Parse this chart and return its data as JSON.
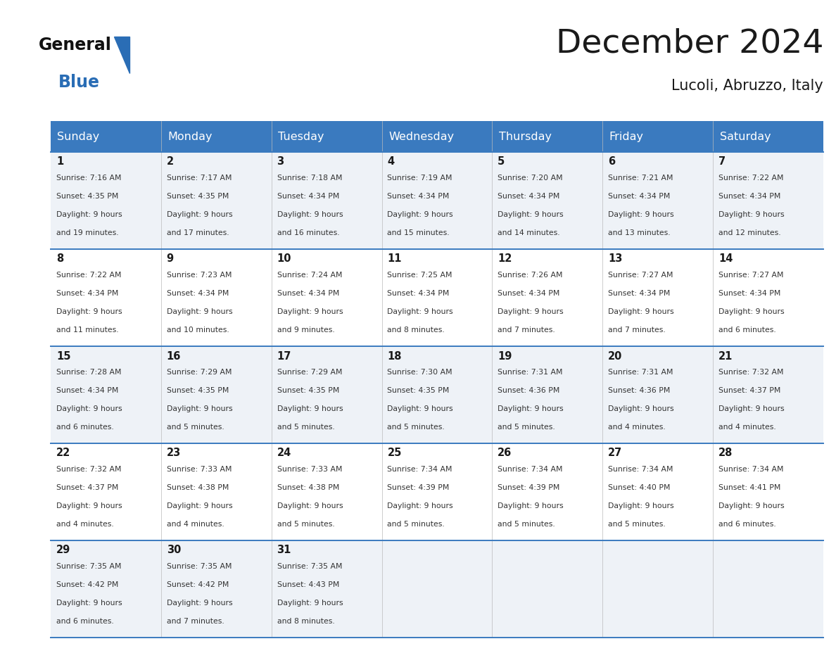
{
  "title": "December 2024",
  "subtitle": "Lucoli, Abruzzo, Italy",
  "header_color": "#3a7abf",
  "header_text_color": "#ffffff",
  "day_headers": [
    "Sunday",
    "Monday",
    "Tuesday",
    "Wednesday",
    "Thursday",
    "Friday",
    "Saturday"
  ],
  "weeks": [
    [
      {
        "day": 1,
        "sunrise": "7:16 AM",
        "sunset": "4:35 PM",
        "daylight_line1": "Daylight: 9 hours",
        "daylight_line2": "and 19 minutes."
      },
      {
        "day": 2,
        "sunrise": "7:17 AM",
        "sunset": "4:35 PM",
        "daylight_line1": "Daylight: 9 hours",
        "daylight_line2": "and 17 minutes."
      },
      {
        "day": 3,
        "sunrise": "7:18 AM",
        "sunset": "4:34 PM",
        "daylight_line1": "Daylight: 9 hours",
        "daylight_line2": "and 16 minutes."
      },
      {
        "day": 4,
        "sunrise": "7:19 AM",
        "sunset": "4:34 PM",
        "daylight_line1": "Daylight: 9 hours",
        "daylight_line2": "and 15 minutes."
      },
      {
        "day": 5,
        "sunrise": "7:20 AM",
        "sunset": "4:34 PM",
        "daylight_line1": "Daylight: 9 hours",
        "daylight_line2": "and 14 minutes."
      },
      {
        "day": 6,
        "sunrise": "7:21 AM",
        "sunset": "4:34 PM",
        "daylight_line1": "Daylight: 9 hours",
        "daylight_line2": "and 13 minutes."
      },
      {
        "day": 7,
        "sunrise": "7:22 AM",
        "sunset": "4:34 PM",
        "daylight_line1": "Daylight: 9 hours",
        "daylight_line2": "and 12 minutes."
      }
    ],
    [
      {
        "day": 8,
        "sunrise": "7:22 AM",
        "sunset": "4:34 PM",
        "daylight_line1": "Daylight: 9 hours",
        "daylight_line2": "and 11 minutes."
      },
      {
        "day": 9,
        "sunrise": "7:23 AM",
        "sunset": "4:34 PM",
        "daylight_line1": "Daylight: 9 hours",
        "daylight_line2": "and 10 minutes."
      },
      {
        "day": 10,
        "sunrise": "7:24 AM",
        "sunset": "4:34 PM",
        "daylight_line1": "Daylight: 9 hours",
        "daylight_line2": "and 9 minutes."
      },
      {
        "day": 11,
        "sunrise": "7:25 AM",
        "sunset": "4:34 PM",
        "daylight_line1": "Daylight: 9 hours",
        "daylight_line2": "and 8 minutes."
      },
      {
        "day": 12,
        "sunrise": "7:26 AM",
        "sunset": "4:34 PM",
        "daylight_line1": "Daylight: 9 hours",
        "daylight_line2": "and 7 minutes."
      },
      {
        "day": 13,
        "sunrise": "7:27 AM",
        "sunset": "4:34 PM",
        "daylight_line1": "Daylight: 9 hours",
        "daylight_line2": "and 7 minutes."
      },
      {
        "day": 14,
        "sunrise": "7:27 AM",
        "sunset": "4:34 PM",
        "daylight_line1": "Daylight: 9 hours",
        "daylight_line2": "and 6 minutes."
      }
    ],
    [
      {
        "day": 15,
        "sunrise": "7:28 AM",
        "sunset": "4:34 PM",
        "daylight_line1": "Daylight: 9 hours",
        "daylight_line2": "and 6 minutes."
      },
      {
        "day": 16,
        "sunrise": "7:29 AM",
        "sunset": "4:35 PM",
        "daylight_line1": "Daylight: 9 hours",
        "daylight_line2": "and 5 minutes."
      },
      {
        "day": 17,
        "sunrise": "7:29 AM",
        "sunset": "4:35 PM",
        "daylight_line1": "Daylight: 9 hours",
        "daylight_line2": "and 5 minutes."
      },
      {
        "day": 18,
        "sunrise": "7:30 AM",
        "sunset": "4:35 PM",
        "daylight_line1": "Daylight: 9 hours",
        "daylight_line2": "and 5 minutes."
      },
      {
        "day": 19,
        "sunrise": "7:31 AM",
        "sunset": "4:36 PM",
        "daylight_line1": "Daylight: 9 hours",
        "daylight_line2": "and 5 minutes."
      },
      {
        "day": 20,
        "sunrise": "7:31 AM",
        "sunset": "4:36 PM",
        "daylight_line1": "Daylight: 9 hours",
        "daylight_line2": "and 4 minutes."
      },
      {
        "day": 21,
        "sunrise": "7:32 AM",
        "sunset": "4:37 PM",
        "daylight_line1": "Daylight: 9 hours",
        "daylight_line2": "and 4 minutes."
      }
    ],
    [
      {
        "day": 22,
        "sunrise": "7:32 AM",
        "sunset": "4:37 PM",
        "daylight_line1": "Daylight: 9 hours",
        "daylight_line2": "and 4 minutes."
      },
      {
        "day": 23,
        "sunrise": "7:33 AM",
        "sunset": "4:38 PM",
        "daylight_line1": "Daylight: 9 hours",
        "daylight_line2": "and 4 minutes."
      },
      {
        "day": 24,
        "sunrise": "7:33 AM",
        "sunset": "4:38 PM",
        "daylight_line1": "Daylight: 9 hours",
        "daylight_line2": "and 5 minutes."
      },
      {
        "day": 25,
        "sunrise": "7:34 AM",
        "sunset": "4:39 PM",
        "daylight_line1": "Daylight: 9 hours",
        "daylight_line2": "and 5 minutes."
      },
      {
        "day": 26,
        "sunrise": "7:34 AM",
        "sunset": "4:39 PM",
        "daylight_line1": "Daylight: 9 hours",
        "daylight_line2": "and 5 minutes."
      },
      {
        "day": 27,
        "sunrise": "7:34 AM",
        "sunset": "4:40 PM",
        "daylight_line1": "Daylight: 9 hours",
        "daylight_line2": "and 5 minutes."
      },
      {
        "day": 28,
        "sunrise": "7:34 AM",
        "sunset": "4:41 PM",
        "daylight_line1": "Daylight: 9 hours",
        "daylight_line2": "and 6 minutes."
      }
    ],
    [
      {
        "day": 29,
        "sunrise": "7:35 AM",
        "sunset": "4:42 PM",
        "daylight_line1": "Daylight: 9 hours",
        "daylight_line2": "and 6 minutes."
      },
      {
        "day": 30,
        "sunrise": "7:35 AM",
        "sunset": "4:42 PM",
        "daylight_line1": "Daylight: 9 hours",
        "daylight_line2": "and 7 minutes."
      },
      {
        "day": 31,
        "sunrise": "7:35 AM",
        "sunset": "4:43 PM",
        "daylight_line1": "Daylight: 9 hours",
        "daylight_line2": "and 8 minutes."
      },
      null,
      null,
      null,
      null
    ]
  ],
  "bg_color": "#ffffff",
  "border_color": "#3a7abf",
  "text_color": "#1a1a1a",
  "cell_text_color": "#333333",
  "cell_bg_light": "#eef2f7",
  "cell_bg_white": "#ffffff",
  "logo_general_color": "#111111",
  "logo_blue_color": "#2a6db5",
  "logo_triangle_color": "#2a6db5"
}
